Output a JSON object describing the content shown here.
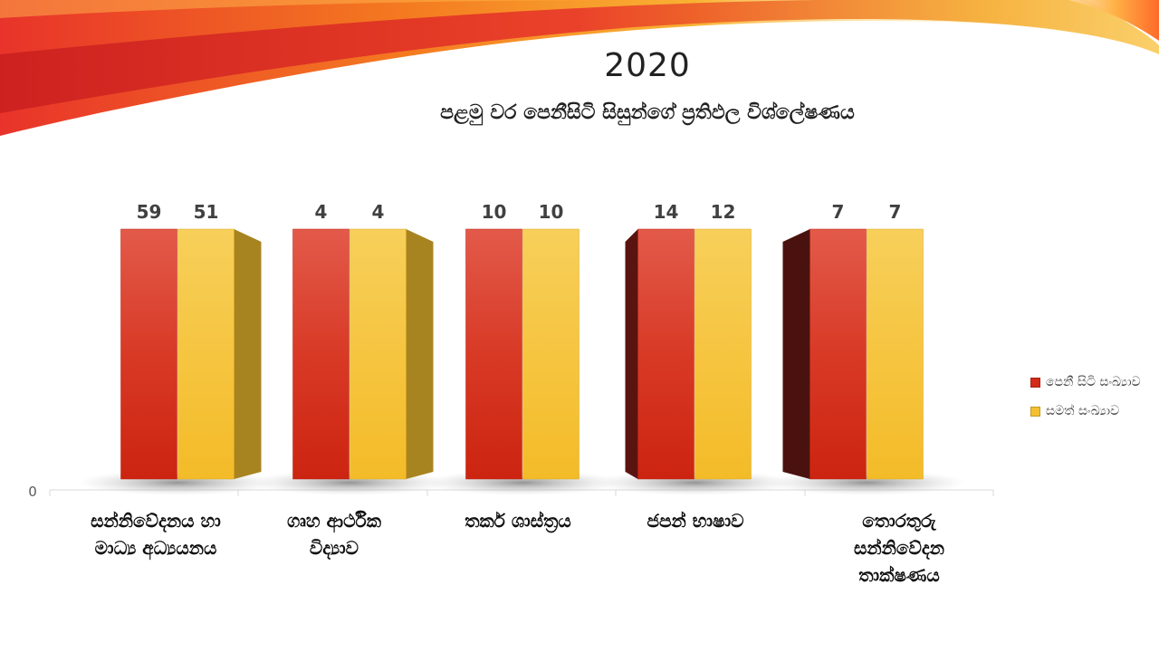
{
  "colors": {
    "series_red": "#d42a1a",
    "series_gold": "#f4c030",
    "accent": "#e8332a"
  },
  "slide": {
    "title": "2020",
    "subtitle": "පළමු වර පෙනීසිටි සිසුන්ගේ ප්‍රතිඵල විශ්ලේෂණය"
  },
  "chart_data": {
    "type": "bar",
    "categories": [
      [
        "සන්නිවේදනය හා",
        "මාධ්‍ය අධ්‍යයනය"
      ],
      [
        "ගෘහ ආර්ථික",
        "විද්‍යාව"
      ],
      [
        "තර්ක ශාස්ත්‍රය"
      ],
      [
        "ජපන් භාෂාව"
      ],
      [
        "තොරතුරු",
        "සන්නිවේදන",
        "තාක්ෂණය"
      ]
    ],
    "series": [
      {
        "name": "පෙනී සිටි සංඛ්‍යාව",
        "values": [
          59,
          4,
          10,
          14,
          7
        ],
        "color": "#d42a1a"
      },
      {
        "name": "සමත් සංඛ්‍යාව",
        "values": [
          51,
          4,
          10,
          12,
          7
        ],
        "color": "#f4c030"
      }
    ],
    "y_axis_label": "0",
    "legend_position": "right",
    "grid": false
  }
}
